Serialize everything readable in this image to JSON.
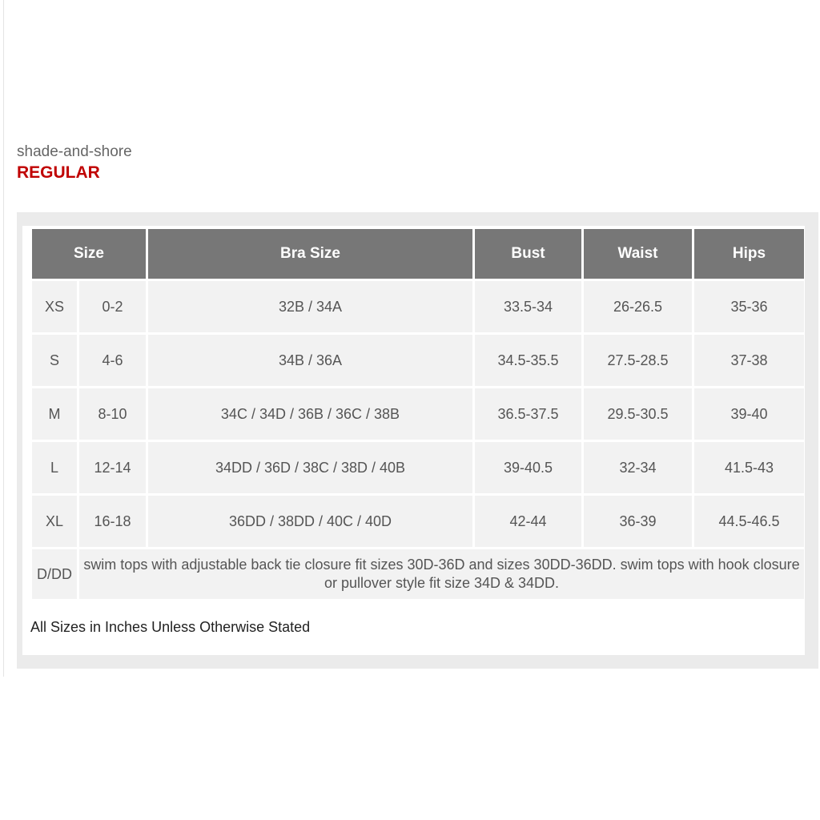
{
  "brand": "shade-and-shore",
  "fit": "REGULAR",
  "headers": [
    "Size",
    "Bra Size",
    "Bust",
    "Waist",
    "Hips"
  ],
  "rows": [
    [
      "XS",
      "0-2",
      "32B / 34A",
      "33.5-34",
      "26-26.5",
      "35-36"
    ],
    [
      "S",
      "4-6",
      "34B / 36A",
      "34.5-35.5",
      "27.5-28.5",
      "37-38"
    ],
    [
      "M",
      "8-10",
      "34C / 34D / 36B / 36C / 38B",
      "36.5-37.5",
      "29.5-30.5",
      "39-40"
    ],
    [
      "L",
      "12-14",
      "34DD / 36D / 38C / 38D / 40B",
      "39-40.5",
      "32-34",
      "41.5-43"
    ],
    [
      "XL",
      "16-18",
      "36DD / 38DD / 40C / 40D",
      "42-44",
      "36-39",
      "44.5-46.5"
    ]
  ],
  "note_row": {
    "label": "D/DD",
    "text": "swim tops with adjustable back tie closure fit sizes 30D-36D and sizes 30DD-36DD. swim tops with hook closure or pullover style fit size 34D & 34DD."
  },
  "footnote": "All Sizes in Inches Unless Otherwise Stated",
  "colors": {
    "header_bg": "#777777",
    "fit_label": "#c00000",
    "cell_bg": "#f2f2f2"
  }
}
